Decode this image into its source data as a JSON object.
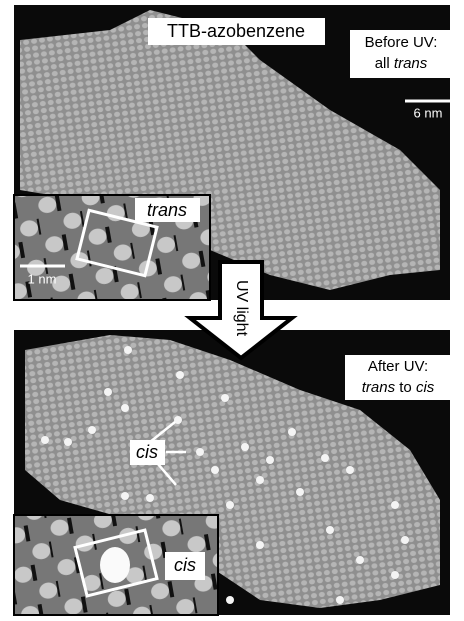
{
  "top_panel": {
    "title": "TTB-azobenzene",
    "note": {
      "line1": "Before UV:",
      "line2_prefix": "all",
      "line2_italic": "trans"
    },
    "scale_bar": "6 nm",
    "inset": {
      "label": "trans",
      "scale_bar": "1 nm"
    }
  },
  "arrow": {
    "label": "UV light"
  },
  "bottom_panel": {
    "note": {
      "line1": "After UV:",
      "line2_italic_1": "trans",
      "line2_middle": "to",
      "line2_italic_2": "cis"
    },
    "annotation": "cis",
    "inset": {
      "label": "cis"
    }
  }
}
